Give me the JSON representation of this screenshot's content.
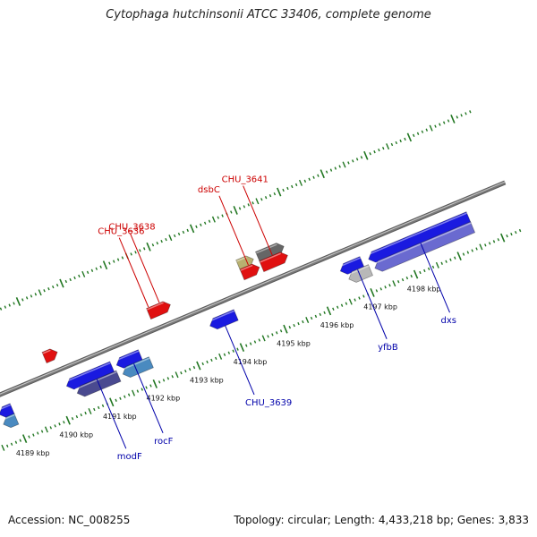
{
  "title": "Cytophaga hutchinsonii ATCC 33406, complete genome",
  "footer": {
    "accession": "Accession: NC_008255",
    "summary": "Topology: circular; Length: 4,433,218 bp; Genes: 3,833"
  },
  "colors": {
    "forward_gene": "#e01010",
    "reverse_gene": "#1a1ae0",
    "backbone": "#7a7a7a",
    "forward_label": "#cc0000",
    "reverse_label": "#0000aa",
    "tick": "#227722"
  },
  "scale": {
    "unit": "kbp",
    "ticks": [
      {
        "pos": 4189,
        "label": "4189 kbp"
      },
      {
        "pos": 4190,
        "label": "4190 kbp"
      },
      {
        "pos": 4191,
        "label": "4191 kbp"
      },
      {
        "pos": 4192,
        "label": "4192 kbp"
      },
      {
        "pos": 4193,
        "label": "4193 kbp"
      },
      {
        "pos": 4194,
        "label": "4194 kbp"
      },
      {
        "pos": 4195,
        "label": "4195 kbp"
      },
      {
        "pos": 4196,
        "label": "4196 kbp"
      },
      {
        "pos": 4197,
        "label": "4197 kbp"
      },
      {
        "pos": 4198,
        "label": "4198 kbp"
      }
    ]
  },
  "genes": [
    {
      "strand": "+",
      "start": 4190.05,
      "end": 4190.35,
      "color": "#e01010"
    },
    {
      "strand": "+",
      "start": 4192.45,
      "end": 4192.95,
      "color": "#e01010"
    },
    {
      "strand": "+",
      "start": 4194.6,
      "end": 4194.95,
      "color": "#b8b070"
    },
    {
      "strand": "+",
      "start": 4194.6,
      "end": 4195.0,
      "color": "#e01010"
    },
    {
      "strand": "+",
      "start": 4195.05,
      "end": 4195.65,
      "color": "#666666"
    },
    {
      "strand": "+",
      "start": 4195.05,
      "end": 4195.65,
      "color": "#e01010"
    },
    {
      "strand": "-",
      "start": 4188.7,
      "end": 4189.0,
      "color": "#1a1ae0"
    },
    {
      "strand": "-",
      "start": 4188.7,
      "end": 4189.0,
      "color": "#4a8ac0"
    },
    {
      "strand": "-",
      "start": 4190.25,
      "end": 4191.3,
      "color": "#1a1ae0"
    },
    {
      "strand": "-",
      "start": 4190.4,
      "end": 4191.35,
      "color": "#4a4a90"
    },
    {
      "strand": "-",
      "start": 4191.4,
      "end": 4191.95,
      "color": "#1a1ae0"
    },
    {
      "strand": "-",
      "start": 4191.45,
      "end": 4192.1,
      "color": "#4a8ac0"
    },
    {
      "strand": "-",
      "start": 4193.55,
      "end": 4194.15,
      "color": "#1a1ae0"
    },
    {
      "strand": "-",
      "start": 4196.55,
      "end": 4197.05,
      "color": "#1a1ae0"
    },
    {
      "strand": "-",
      "start": 4196.65,
      "end": 4197.15,
      "color": "#b8b8b8"
    },
    {
      "strand": "-",
      "start": 4197.2,
      "end": 4199.5,
      "color": "#1a1ae0"
    },
    {
      "strand": "-",
      "start": 4197.25,
      "end": 4199.5,
      "color": "#6a6ad0"
    }
  ],
  "labels": [
    {
      "name": "CHU_3636",
      "strand": "+",
      "pos": 4192.5
    },
    {
      "name": "CHU_3638",
      "strand": "+",
      "pos": 4192.75
    },
    {
      "name": "dsbC",
      "strand": "+",
      "pos": 4194.8
    },
    {
      "name": "CHU_3641",
      "strand": "+",
      "pos": 4195.35
    },
    {
      "name": "modF",
      "strand": "-",
      "pos": 4190.9
    },
    {
      "name": "rocF",
      "strand": "-",
      "pos": 4191.75
    },
    {
      "name": "CHU_3639",
      "strand": "-",
      "pos": 4193.85
    },
    {
      "name": "yfbB",
      "strand": "-",
      "pos": 4196.9
    },
    {
      "name": "dxs",
      "strand": "-",
      "pos": 4198.35
    }
  ]
}
